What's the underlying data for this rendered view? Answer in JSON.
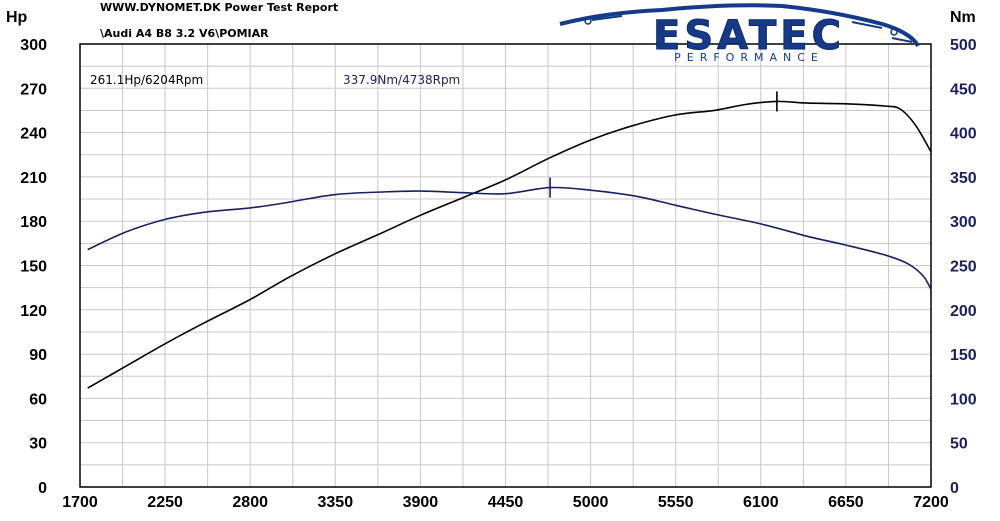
{
  "header": {
    "brand_line": "WWW.DYNOMET.DK  Power Test Report",
    "report_title": "\\Audi A4 B8 3.2 V6\\POMIAR"
  },
  "logo": {
    "word": "ESATEC",
    "sub": "PERFORMANCE"
  },
  "peaks": {
    "power_label": "261.1Hp/6204Rpm",
    "torque_label": "337.9Nm/4738Rpm"
  },
  "colors": {
    "power": "#000000",
    "torque": "#1a1f5e",
    "grid": "#c8c8c8",
    "logo": "#153a8a"
  },
  "chart_data": {
    "type": "line",
    "title": "",
    "xlabel": "",
    "x_ticks": [
      "1700",
      "2250",
      "2800",
      "3350",
      "3900",
      "4450",
      "5000",
      "5550",
      "6100",
      "6650",
      "7200"
    ],
    "x_tick_labels_shown": [
      "1700",
      "2250",
      "2800",
      "3350",
      "3900",
      "4450",
      "5000",
      "5550",
      "6100",
      "6650",
      "7200"
    ],
    "xlim": [
      1700,
      7200
    ],
    "left_axis": {
      "label": "Hp",
      "ylim": [
        0,
        300
      ],
      "ticks": [
        0,
        30,
        60,
        90,
        120,
        150,
        180,
        210,
        240,
        270,
        300
      ]
    },
    "right_axis": {
      "label": "Nm",
      "ylim": [
        0,
        500
      ],
      "ticks": [
        0,
        50,
        100,
        150,
        200,
        250,
        300,
        350,
        400,
        450,
        500
      ]
    },
    "grid": true,
    "series": [
      {
        "name": "Hp",
        "axis": "left",
        "points": [
          [
            1750,
            67
          ],
          [
            2000,
            82
          ],
          [
            2250,
            97
          ],
          [
            2500,
            111
          ],
          [
            2800,
            127
          ],
          [
            3050,
            142
          ],
          [
            3350,
            158
          ],
          [
            3650,
            172
          ],
          [
            3900,
            184
          ],
          [
            4200,
            197
          ],
          [
            4450,
            208
          ],
          [
            4738,
            223
          ],
          [
            5000,
            235
          ],
          [
            5250,
            244
          ],
          [
            5550,
            252
          ],
          [
            5800,
            255
          ],
          [
            6000,
            259
          ],
          [
            6204,
            261.1
          ],
          [
            6400,
            260
          ],
          [
            6650,
            259.5
          ],
          [
            6900,
            258
          ],
          [
            7000,
            256
          ],
          [
            7100,
            245
          ],
          [
            7200,
            227
          ]
        ]
      },
      {
        "name": "Nm",
        "axis": "right",
        "points": [
          [
            1750,
            268
          ],
          [
            2000,
            288
          ],
          [
            2250,
            302
          ],
          [
            2500,
            310
          ],
          [
            2800,
            315
          ],
          [
            3000,
            320
          ],
          [
            3350,
            330
          ],
          [
            3650,
            333
          ],
          [
            3900,
            334
          ],
          [
            4200,
            332
          ],
          [
            4450,
            331
          ],
          [
            4738,
            337.9
          ],
          [
            5000,
            335
          ],
          [
            5300,
            328
          ],
          [
            5550,
            318
          ],
          [
            5800,
            308
          ],
          [
            6100,
            297
          ],
          [
            6400,
            283
          ],
          [
            6650,
            273
          ],
          [
            6900,
            262
          ],
          [
            7050,
            252
          ],
          [
            7150,
            238
          ],
          [
            7200,
            223
          ]
        ]
      }
    ],
    "markers": [
      {
        "series": "Hp",
        "x": 6204,
        "y": 261.1
      },
      {
        "series": "Nm",
        "x": 4738,
        "y": 337.9
      }
    ]
  }
}
